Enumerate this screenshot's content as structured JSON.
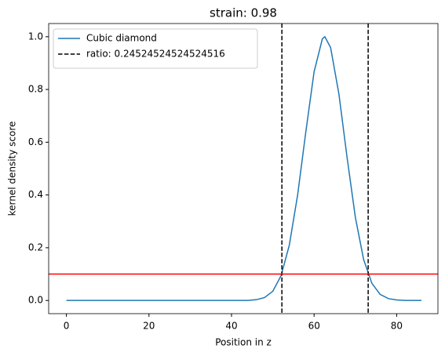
{
  "chart_data": {
    "type": "line",
    "title": "strain: 0.98",
    "xlabel": "Position in z",
    "ylabel": "kernel density score",
    "x": [
      0,
      2,
      4,
      6,
      8,
      10,
      12,
      14,
      16,
      18,
      20,
      22,
      24,
      26,
      28,
      30,
      32,
      34,
      36,
      38,
      40,
      42,
      44,
      46,
      48,
      50,
      52,
      54,
      56,
      58,
      60,
      62,
      62.6,
      64,
      66,
      68,
      70,
      72,
      74,
      76,
      78,
      80,
      82,
      84,
      86
    ],
    "series": [
      {
        "name": "Cubic diamond",
        "color": "#1f77b4",
        "values": [
          0,
          0,
          0,
          0,
          0,
          0,
          0,
          0,
          0,
          0,
          0,
          0,
          0,
          0,
          0,
          0,
          0,
          0,
          0,
          0,
          0,
          0,
          0,
          0.003,
          0.011,
          0.035,
          0.094,
          0.21,
          0.399,
          0.64,
          0.867,
          0.992,
          1,
          0.959,
          0.784,
          0.541,
          0.315,
          0.155,
          0.065,
          0.023,
          0.007,
          0.002,
          0,
          0,
          0
        ]
      }
    ],
    "vlines": {
      "name": "ratio: 0.24524524524524516",
      "color": "#000000",
      "values": [
        52.2,
        73.1
      ]
    },
    "hline": {
      "color": "#ff0000",
      "value": 0.1
    },
    "xlim": [
      -4.3,
      90
    ],
    "ylim": [
      -0.05,
      1.05
    ],
    "xticks": [
      0,
      20,
      40,
      60,
      80
    ],
    "yticks": [
      {
        "value": 0,
        "label": "0.0"
      },
      0.2,
      0.4,
      0.6,
      0.8,
      {
        "value": 1,
        "label": "1.0"
      }
    ],
    "legend": "upper left"
  }
}
